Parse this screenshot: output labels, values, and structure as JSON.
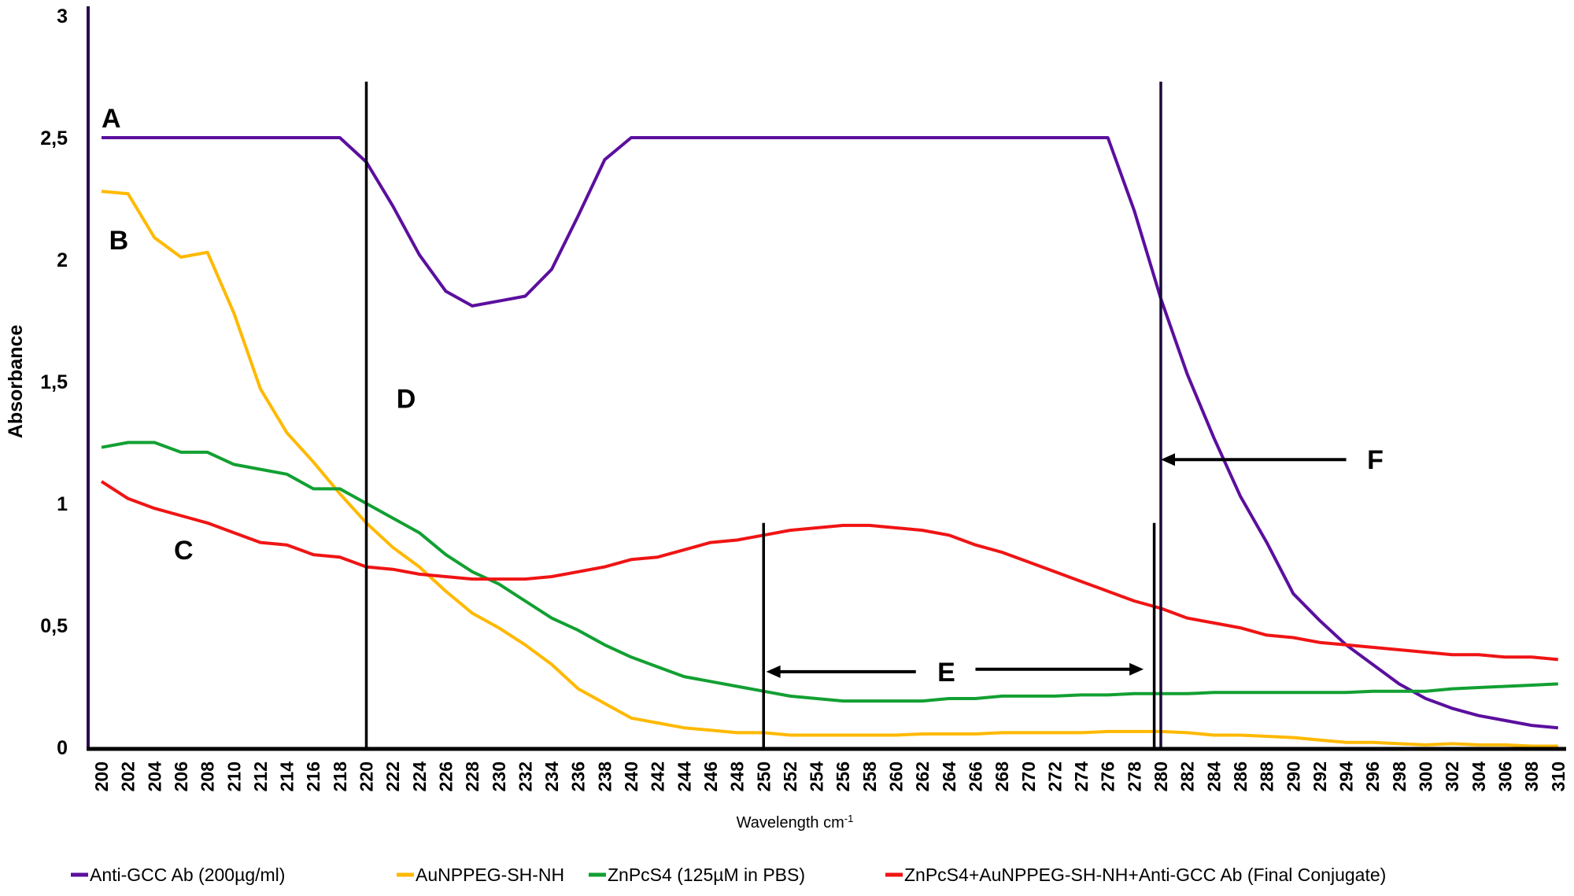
{
  "chart_data": {
    "type": "line",
    "xlabel": "Wavelength cm-1",
    "ylabel": "Absorbance",
    "ylim": [
      0,
      3
    ],
    "xlim": [
      200,
      310
    ],
    "yticks": [
      "0",
      "0,5",
      "1",
      "1,5",
      "2",
      "2,5",
      "3"
    ],
    "x": [
      200,
      202,
      204,
      206,
      208,
      210,
      212,
      214,
      216,
      218,
      220,
      222,
      224,
      226,
      228,
      230,
      232,
      234,
      236,
      238,
      240,
      242,
      244,
      246,
      248,
      250,
      252,
      254,
      256,
      258,
      260,
      262,
      264,
      266,
      268,
      270,
      272,
      274,
      276,
      278,
      280,
      282,
      284,
      286,
      288,
      290,
      292,
      294,
      296,
      298,
      300,
      302,
      304,
      306,
      308,
      310
    ],
    "legend_position": "bottom",
    "grid": false,
    "series": [
      {
        "name": "Anti-GCC Ab (200µg/ml)",
        "color": "#5b0f9e",
        "values": [
          2.5,
          2.5,
          2.5,
          2.5,
          2.5,
          2.5,
          2.5,
          2.5,
          2.5,
          2.5,
          2.4,
          2.22,
          2.02,
          1.87,
          1.81,
          1.83,
          1.85,
          1.96,
          2.18,
          2.41,
          2.5,
          2.5,
          2.5,
          2.5,
          2.5,
          2.5,
          2.5,
          2.5,
          2.5,
          2.5,
          2.5,
          2.5,
          2.5,
          2.5,
          2.5,
          2.5,
          2.5,
          2.5,
          2.5,
          2.2,
          1.84,
          1.53,
          1.27,
          1.03,
          0.84,
          0.63,
          0.52,
          0.42,
          0.34,
          0.26,
          0.2,
          0.16,
          0.13,
          0.11,
          0.09,
          0.08
        ]
      },
      {
        "name": "AuNPPEG-SH-NH",
        "color": "#ffb900",
        "values": [
          2.28,
          2.27,
          2.09,
          2.01,
          2.03,
          1.78,
          1.47,
          1.29,
          1.17,
          1.04,
          0.92,
          0.82,
          0.74,
          0.64,
          0.55,
          0.49,
          0.42,
          0.34,
          0.24,
          0.18,
          0.12,
          0.1,
          0.08,
          0.07,
          0.06,
          0.06,
          0.05,
          0.05,
          0.05,
          0.05,
          0.05,
          0.055,
          0.055,
          0.055,
          0.06,
          0.06,
          0.06,
          0.06,
          0.065,
          0.065,
          0.065,
          0.06,
          0.05,
          0.05,
          0.045,
          0.04,
          0.03,
          0.02,
          0.02,
          0.015,
          0.01,
          0.015,
          0.01,
          0.01,
          0.005,
          0.005
        ]
      },
      {
        "name": "ZnPcS4 (125µM in PBS)",
        "color": "#12a032",
        "values": [
          1.23,
          1.25,
          1.25,
          1.21,
          1.21,
          1.16,
          1.14,
          1.12,
          1.06,
          1.06,
          1.0,
          0.94,
          0.88,
          0.79,
          0.72,
          0.67,
          0.6,
          0.53,
          0.48,
          0.42,
          0.37,
          0.33,
          0.29,
          0.27,
          0.25,
          0.23,
          0.21,
          0.2,
          0.19,
          0.19,
          0.19,
          0.19,
          0.2,
          0.2,
          0.21,
          0.21,
          0.21,
          0.215,
          0.215,
          0.22,
          0.22,
          0.22,
          0.225,
          0.225,
          0.225,
          0.225,
          0.225,
          0.225,
          0.23,
          0.23,
          0.23,
          0.24,
          0.245,
          0.25,
          0.255,
          0.26
        ]
      },
      {
        "name": "ZnPcS4+AuNPPEG-SH-NH+Anti-GCC Ab (Final Conjugate)",
        "color": "#f01414",
        "values": [
          1.09,
          1.02,
          0.98,
          0.95,
          0.92,
          0.88,
          0.84,
          0.83,
          0.79,
          0.78,
          0.74,
          0.73,
          0.71,
          0.7,
          0.69,
          0.69,
          0.69,
          0.7,
          0.72,
          0.74,
          0.77,
          0.78,
          0.81,
          0.84,
          0.85,
          0.87,
          0.89,
          0.9,
          0.91,
          0.91,
          0.9,
          0.89,
          0.87,
          0.83,
          0.8,
          0.76,
          0.72,
          0.68,
          0.64,
          0.6,
          0.57,
          0.53,
          0.51,
          0.49,
          0.46,
          0.45,
          0.43,
          0.42,
          0.41,
          0.4,
          0.39,
          0.38,
          0.38,
          0.37,
          0.37,
          0.36
        ]
      }
    ],
    "annotations": [
      {
        "text": "A",
        "x": 200,
        "y": 2.58
      },
      {
        "text": "B",
        "x": 201.3,
        "y": 2.08
      },
      {
        "text": "C",
        "x": 206.2,
        "y": 0.81
      },
      {
        "text": "D",
        "x": 223,
        "y": 1.43
      },
      {
        "text": "E",
        "x": 263.8,
        "y": 0.31
      },
      {
        "text": "F",
        "x": 296.2,
        "y": 1.18
      }
    ],
    "vertical_lines": [
      {
        "x": 220,
        "y_top": 2.73
      },
      {
        "x": 250,
        "y_top": 0.92
      },
      {
        "x": 279.5,
        "y_top": 0.92
      },
      {
        "x": 280,
        "y_top": 2.73
      }
    ],
    "arrows": [
      {
        "label": "E",
        "from": [
          261.5,
          0.31
        ],
        "to": [
          250.2,
          0.31
        ],
        "double": true,
        "from2": [
          266,
          0.32
        ],
        "to2": [
          278.7,
          0.32
        ]
      },
      {
        "label": "F",
        "from": [
          294,
          1.18
        ],
        "to": [
          280,
          1.18
        ]
      }
    ]
  }
}
